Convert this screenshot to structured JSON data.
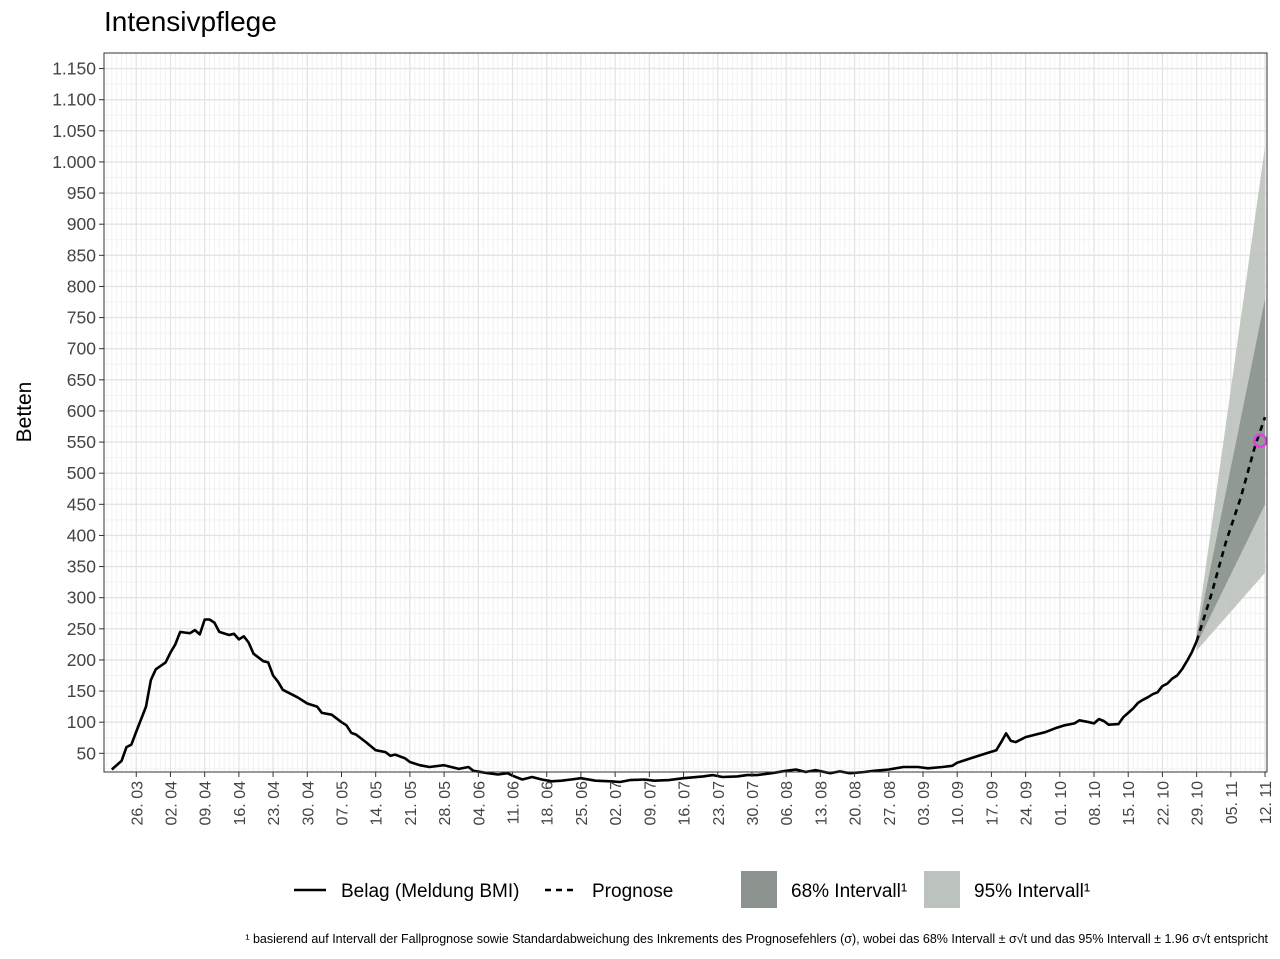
{
  "chart_data": {
    "type": "line",
    "title": "Intensivpflege",
    "ylabel": "Betten",
    "xlabel": "",
    "ylim": [
      20,
      1175
    ],
    "y_ticks": [
      50,
      100,
      150,
      200,
      250,
      300,
      350,
      400,
      450,
      500,
      550,
      600,
      650,
      700,
      750,
      800,
      850,
      900,
      950,
      1000,
      1050,
      1100,
      1150
    ],
    "y_tick_labels": [
      "50",
      "100",
      "150",
      "200",
      "250",
      "300",
      "350",
      "400",
      "450",
      "500",
      "550",
      "600",
      "650",
      "700",
      "750",
      "800",
      "850",
      "900",
      "950",
      "1.000",
      "1.050",
      "1.100",
      "1.150"
    ],
    "x_start": "2020-03-21",
    "x_end": "2020-11-12",
    "x_ticks": [
      "2020-03-26",
      "2020-04-02",
      "2020-04-09",
      "2020-04-16",
      "2020-04-23",
      "2020-04-30",
      "2020-05-07",
      "2020-05-14",
      "2020-05-21",
      "2020-05-28",
      "2020-06-04",
      "2020-06-11",
      "2020-06-18",
      "2020-06-25",
      "2020-07-02",
      "2020-07-09",
      "2020-07-16",
      "2020-07-23",
      "2020-07-30",
      "2020-08-06",
      "2020-08-13",
      "2020-08-20",
      "2020-08-27",
      "2020-09-03",
      "2020-09-10",
      "2020-09-17",
      "2020-09-24",
      "2020-10-01",
      "2020-10-08",
      "2020-10-15",
      "2020-10-22",
      "2020-10-29",
      "2020-11-05",
      "2020-11-12"
    ],
    "x_tick_labels": [
      "26. 03",
      "02. 04",
      "09. 04",
      "16. 04",
      "23. 04",
      "30. 04",
      "07. 05",
      "14. 05",
      "21. 05",
      "28. 05",
      "04. 06",
      "11. 06",
      "18. 06",
      "25. 06",
      "02. 07",
      "09. 07",
      "16. 07",
      "23. 07",
      "30. 07",
      "06. 08",
      "13. 08",
      "20. 08",
      "27. 08",
      "03. 09",
      "10. 09",
      "17. 09",
      "24. 09",
      "01. 10",
      "08. 10",
      "15. 10",
      "22. 10",
      "29. 10",
      "05. 11",
      "12. 11"
    ],
    "grid": true,
    "legend_position": "bottom",
    "series": [
      {
        "name": "Belag (Meldung BMI)",
        "style": "solid",
        "color": "#000000",
        "points": [
          [
            "2020-03-21",
            24
          ],
          [
            "2020-03-23",
            38
          ],
          [
            "2020-03-24",
            60
          ],
          [
            "2020-03-25",
            64
          ],
          [
            "2020-03-26",
            85
          ],
          [
            "2020-03-28",
            125
          ],
          [
            "2020-03-29",
            168
          ],
          [
            "2020-03-30",
            185
          ],
          [
            "2020-04-01",
            196
          ],
          [
            "2020-04-02",
            212
          ],
          [
            "2020-04-03",
            225
          ],
          [
            "2020-04-04",
            245
          ],
          [
            "2020-04-05",
            244
          ],
          [
            "2020-04-06",
            243
          ],
          [
            "2020-04-07",
            248
          ],
          [
            "2020-04-08",
            241
          ],
          [
            "2020-04-09",
            265
          ],
          [
            "2020-04-10",
            265
          ],
          [
            "2020-04-11",
            260
          ],
          [
            "2020-04-12",
            245
          ],
          [
            "2020-04-14",
            240
          ],
          [
            "2020-04-15",
            242
          ],
          [
            "2020-04-16",
            233
          ],
          [
            "2020-04-17",
            238
          ],
          [
            "2020-04-18",
            228
          ],
          [
            "2020-04-19",
            210
          ],
          [
            "2020-04-21",
            198
          ],
          [
            "2020-04-22",
            196
          ],
          [
            "2020-04-23",
            175
          ],
          [
            "2020-04-24",
            165
          ],
          [
            "2020-04-25",
            152
          ],
          [
            "2020-04-28",
            140
          ],
          [
            "2020-04-30",
            130
          ],
          [
            "2020-05-02",
            125
          ],
          [
            "2020-05-03",
            115
          ],
          [
            "2020-05-05",
            112
          ],
          [
            "2020-05-07",
            100
          ],
          [
            "2020-05-08",
            95
          ],
          [
            "2020-05-09",
            83
          ],
          [
            "2020-05-10",
            80
          ],
          [
            "2020-05-12",
            68
          ],
          [
            "2020-05-14",
            55
          ],
          [
            "2020-05-16",
            52
          ],
          [
            "2020-05-17",
            46
          ],
          [
            "2020-05-18",
            48
          ],
          [
            "2020-05-20",
            42
          ],
          [
            "2020-05-21",
            36
          ],
          [
            "2020-05-23",
            31
          ],
          [
            "2020-05-25",
            28
          ],
          [
            "2020-05-28",
            31
          ],
          [
            "2020-05-31",
            25
          ],
          [
            "2020-06-02",
            28
          ],
          [
            "2020-06-03",
            22
          ],
          [
            "2020-06-06",
            18
          ],
          [
            "2020-06-08",
            16
          ],
          [
            "2020-06-10",
            18
          ],
          [
            "2020-06-11",
            14
          ],
          [
            "2020-06-13",
            8
          ],
          [
            "2020-06-15",
            12
          ],
          [
            "2020-06-17",
            8
          ],
          [
            "2020-06-19",
            5
          ],
          [
            "2020-06-21",
            6
          ],
          [
            "2020-06-23",
            8
          ],
          [
            "2020-06-25",
            10
          ],
          [
            "2020-06-28",
            6
          ],
          [
            "2020-07-01",
            5
          ],
          [
            "2020-07-03",
            4
          ],
          [
            "2020-07-05",
            7
          ],
          [
            "2020-07-08",
            8
          ],
          [
            "2020-07-10",
            6
          ],
          [
            "2020-07-13",
            7
          ],
          [
            "2020-07-16",
            10
          ],
          [
            "2020-07-20",
            13
          ],
          [
            "2020-07-22",
            15
          ],
          [
            "2020-07-24",
            12
          ],
          [
            "2020-07-27",
            13
          ],
          [
            "2020-07-29",
            15
          ],
          [
            "2020-07-31",
            15
          ],
          [
            "2020-08-03",
            18
          ],
          [
            "2020-08-06",
            22
          ],
          [
            "2020-08-08",
            24
          ],
          [
            "2020-08-10",
            20
          ],
          [
            "2020-08-12",
            23
          ],
          [
            "2020-08-15",
            18
          ],
          [
            "2020-08-17",
            21
          ],
          [
            "2020-08-19",
            18
          ],
          [
            "2020-08-22",
            20
          ],
          [
            "2020-08-24",
            22
          ],
          [
            "2020-08-27",
            24
          ],
          [
            "2020-08-30",
            28
          ],
          [
            "2020-09-02",
            28
          ],
          [
            "2020-09-04",
            26
          ],
          [
            "2020-09-07",
            28
          ],
          [
            "2020-09-09",
            30
          ],
          [
            "2020-09-10",
            35
          ],
          [
            "2020-09-12",
            40
          ],
          [
            "2020-09-14",
            45
          ],
          [
            "2020-09-16",
            50
          ],
          [
            "2020-09-18",
            55
          ],
          [
            "2020-09-19",
            68
          ],
          [
            "2020-09-20",
            82
          ],
          [
            "2020-09-21",
            70
          ],
          [
            "2020-09-22",
            68
          ],
          [
            "2020-09-24",
            76
          ],
          [
            "2020-09-26",
            80
          ],
          [
            "2020-09-28",
            84
          ],
          [
            "2020-09-30",
            90
          ],
          [
            "2020-10-02",
            95
          ],
          [
            "2020-10-04",
            98
          ],
          [
            "2020-10-05",
            103
          ],
          [
            "2020-10-07",
            100
          ],
          [
            "2020-10-08",
            98
          ],
          [
            "2020-10-09",
            105
          ],
          [
            "2020-10-10",
            102
          ],
          [
            "2020-10-11",
            96
          ],
          [
            "2020-10-13",
            97
          ],
          [
            "2020-10-14",
            108
          ],
          [
            "2020-10-15",
            115
          ],
          [
            "2020-10-16",
            122
          ],
          [
            "2020-10-17",
            131
          ],
          [
            "2020-10-18",
            136
          ],
          [
            "2020-10-19",
            140
          ],
          [
            "2020-10-20",
            145
          ],
          [
            "2020-10-21",
            148
          ],
          [
            "2020-10-22",
            158
          ],
          [
            "2020-10-23",
            162
          ],
          [
            "2020-10-24",
            170
          ],
          [
            "2020-10-25",
            175
          ],
          [
            "2020-10-26",
            185
          ],
          [
            "2020-10-27",
            198
          ],
          [
            "2020-10-28",
            212
          ],
          [
            "2020-10-29",
            230
          ]
        ]
      },
      {
        "name": "Prognose",
        "style": "dashed",
        "color": "#000000",
        "points": [
          [
            "2020-10-29",
            230
          ],
          [
            "2020-11-01",
            305
          ],
          [
            "2020-11-04",
            390
          ],
          [
            "2020-11-07",
            460
          ],
          [
            "2020-11-10",
            545
          ],
          [
            "2020-11-12",
            590
          ]
        ]
      }
    ],
    "bands": [
      {
        "name": "95% Intervall¹",
        "color": "#bcc2bd",
        "x": [
          "2020-10-29",
          "2020-11-12"
        ],
        "lower": [
          215,
          340
        ],
        "upper": [
          245,
          1025
        ]
      },
      {
        "name": "68% Intervall¹",
        "color": "#8c938e",
        "x": [
          "2020-10-29",
          "2020-11-12"
        ],
        "lower": [
          225,
          450
        ],
        "upper": [
          238,
          780
        ]
      }
    ],
    "marker": {
      "x": "2020-11-11",
      "y": 552,
      "color": "#e040e0",
      "shape": "circle"
    },
    "footnote": "¹ basierend auf Intervall der Fallprognose sowie Standardabweichung des Inkrements des Prognosefehlers (σ), wobei das 68% Intervall ± σ√t und das 95% Intervall ± 1.96 σ√t entspricht"
  }
}
